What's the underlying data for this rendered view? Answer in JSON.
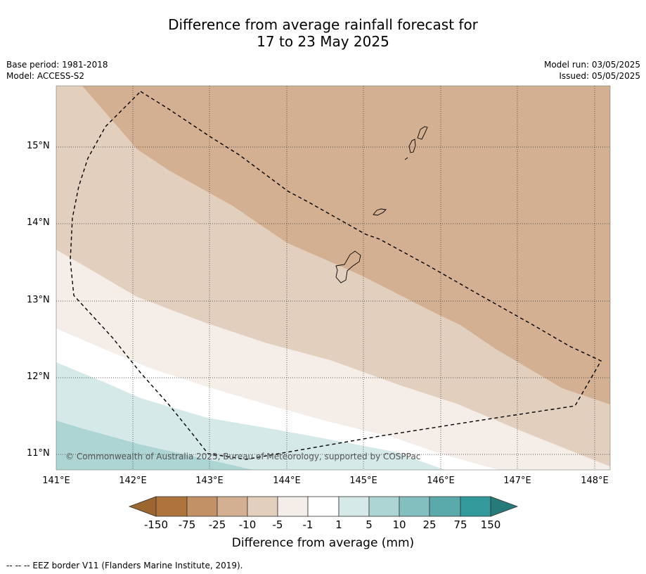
{
  "title_line1": "Difference from average rainfall forecast for",
  "title_line2": "17 to 23 May 2025",
  "base_period": "Base period: 1981-2018",
  "model": "Model: ACCESS-S2",
  "model_run": "Model run: 03/05/2025",
  "issued": "Issued: 05/05/2025",
  "copyright": "© Commonwealth of Australia 2025, Bureau of Meteorology, supported by COSPPac",
  "lat_labels": [
    "15°N",
    "14°N",
    "13°N",
    "12°N",
    "11°N"
  ],
  "lon_labels": [
    "141°E",
    "142°E",
    "143°E",
    "144°E",
    "145°E",
    "146°E",
    "147°E",
    "148°E"
  ],
  "colorbar": {
    "ticks": [
      "-150",
      "-75",
      "-25",
      "-10",
      "-5",
      "-1",
      "1",
      "5",
      "10",
      "25",
      "75",
      "150"
    ],
    "colors": [
      "#9c6630",
      "#ae743c",
      "#c29165",
      "#d2b091",
      "#e2cfbd",
      "#f5ede7",
      "#ffffff",
      "#d5e9e8",
      "#add5d4",
      "#84bfc0",
      "#5aaaab",
      "#33999a",
      "#267a7a"
    ],
    "title": "Difference from average (mm)"
  },
  "footer": "--  --  -- EEZ border V11 (Flanders Marine Institute, 2019)."
}
